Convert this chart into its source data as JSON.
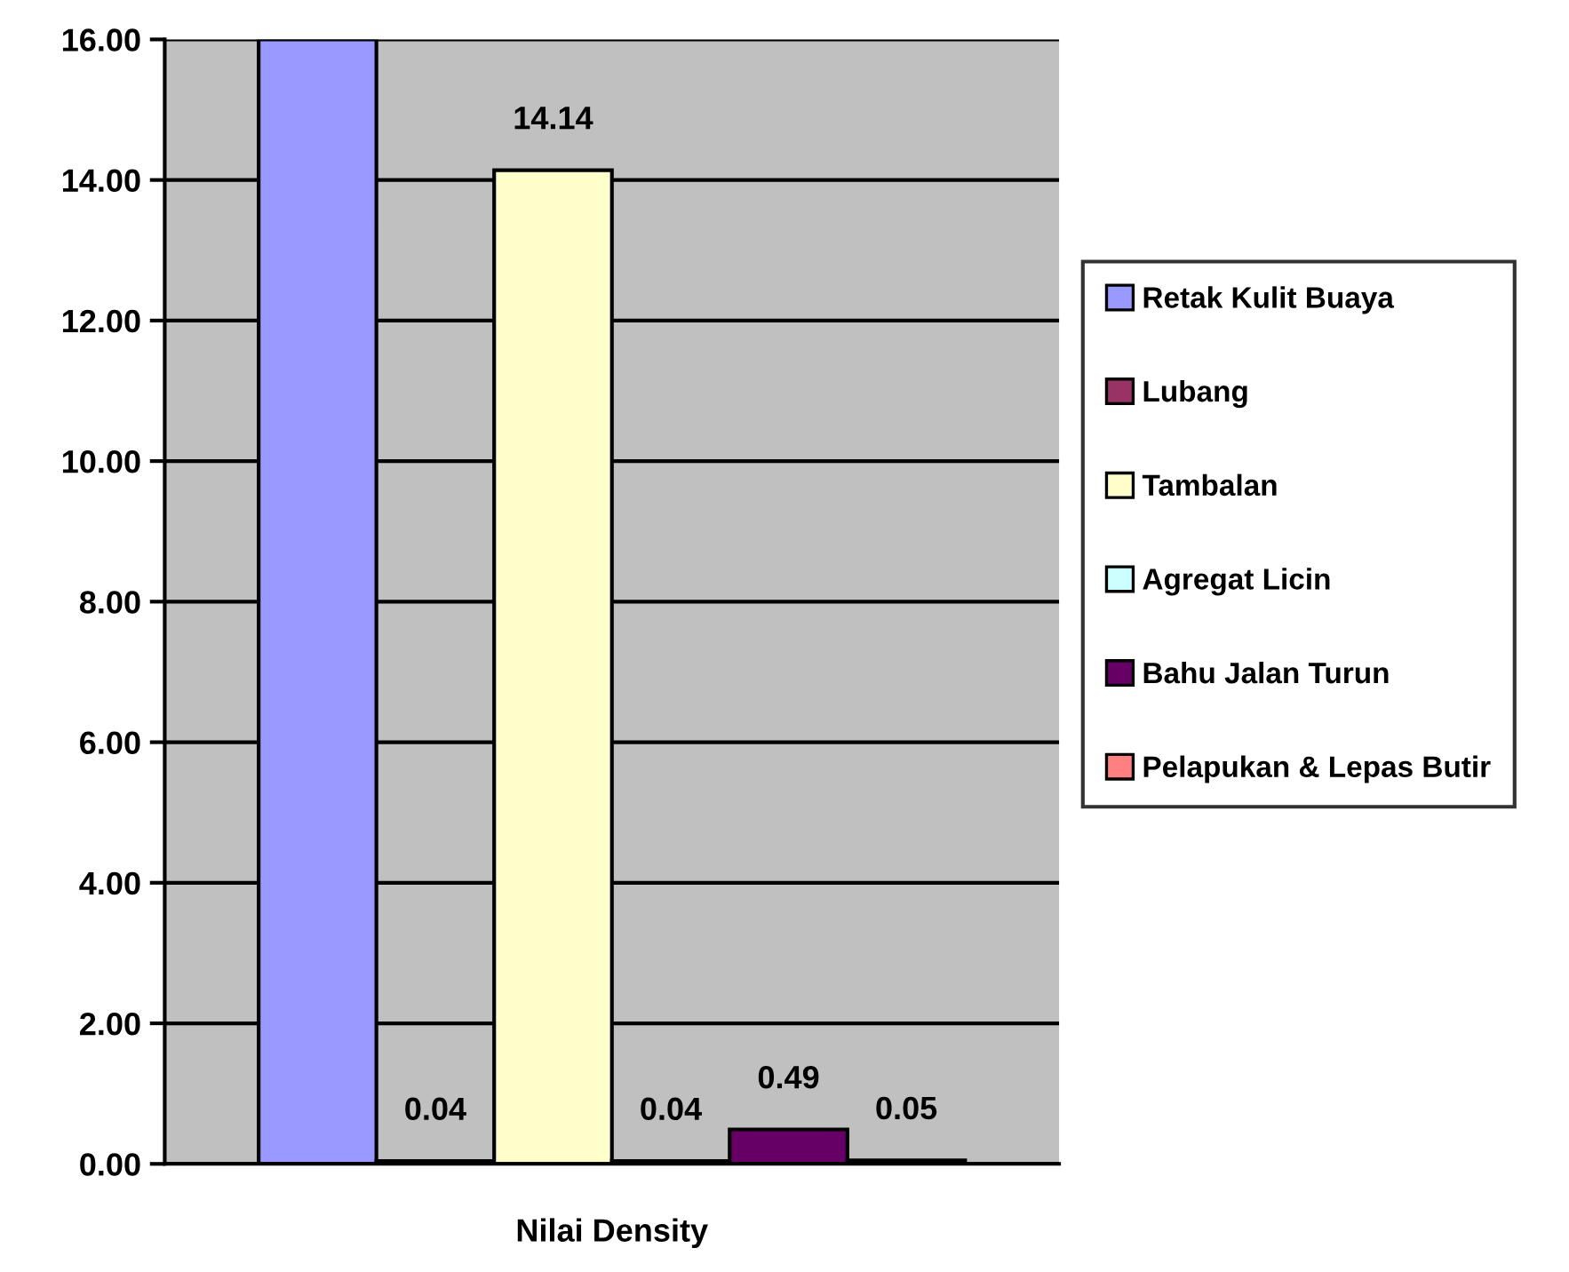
{
  "chart_data": {
    "type": "bar",
    "categories": [
      "Nilai Density"
    ],
    "series": [
      {
        "name": "Retak Kulit Buaya",
        "color": "#9999ff",
        "values": [
          16
        ],
        "value_labels": [
          null
        ]
      },
      {
        "name": "Lubang",
        "color": "#993366",
        "values": [
          0.04
        ],
        "value_labels": [
          "0.04"
        ]
      },
      {
        "name": "Tambalan",
        "color": "#ffffcc",
        "values": [
          14.14
        ],
        "value_labels": [
          "14.14"
        ]
      },
      {
        "name": "Agregat Licin",
        "color": "#ccffff",
        "values": [
          0.04
        ],
        "value_labels": [
          "0.04"
        ]
      },
      {
        "name": "Bahu Jalan Turun",
        "color": "#660066",
        "values": [
          0.49
        ],
        "value_labels": [
          "0.49"
        ]
      },
      {
        "name": "Pelapukan & Lepas Butir",
        "color": "#ff8080",
        "values": [
          0.05
        ],
        "value_labels": [
          "0.05"
        ]
      }
    ],
    "ylim": [
      0,
      16
    ],
    "yticks": [
      {
        "value": 0,
        "label": "0.00"
      },
      {
        "value": 2,
        "label": "2.00"
      },
      {
        "value": 4,
        "label": "4.00"
      },
      {
        "value": 6,
        "label": "6.00"
      },
      {
        "value": 8,
        "label": "8.00"
      },
      {
        "value": 10,
        "label": "10.00"
      },
      {
        "value": 12,
        "label": "12.00"
      },
      {
        "value": 14,
        "label": "14.00"
      },
      {
        "value": 16,
        "label": "16.00"
      }
    ],
    "grid": "y",
    "legend": "right"
  }
}
